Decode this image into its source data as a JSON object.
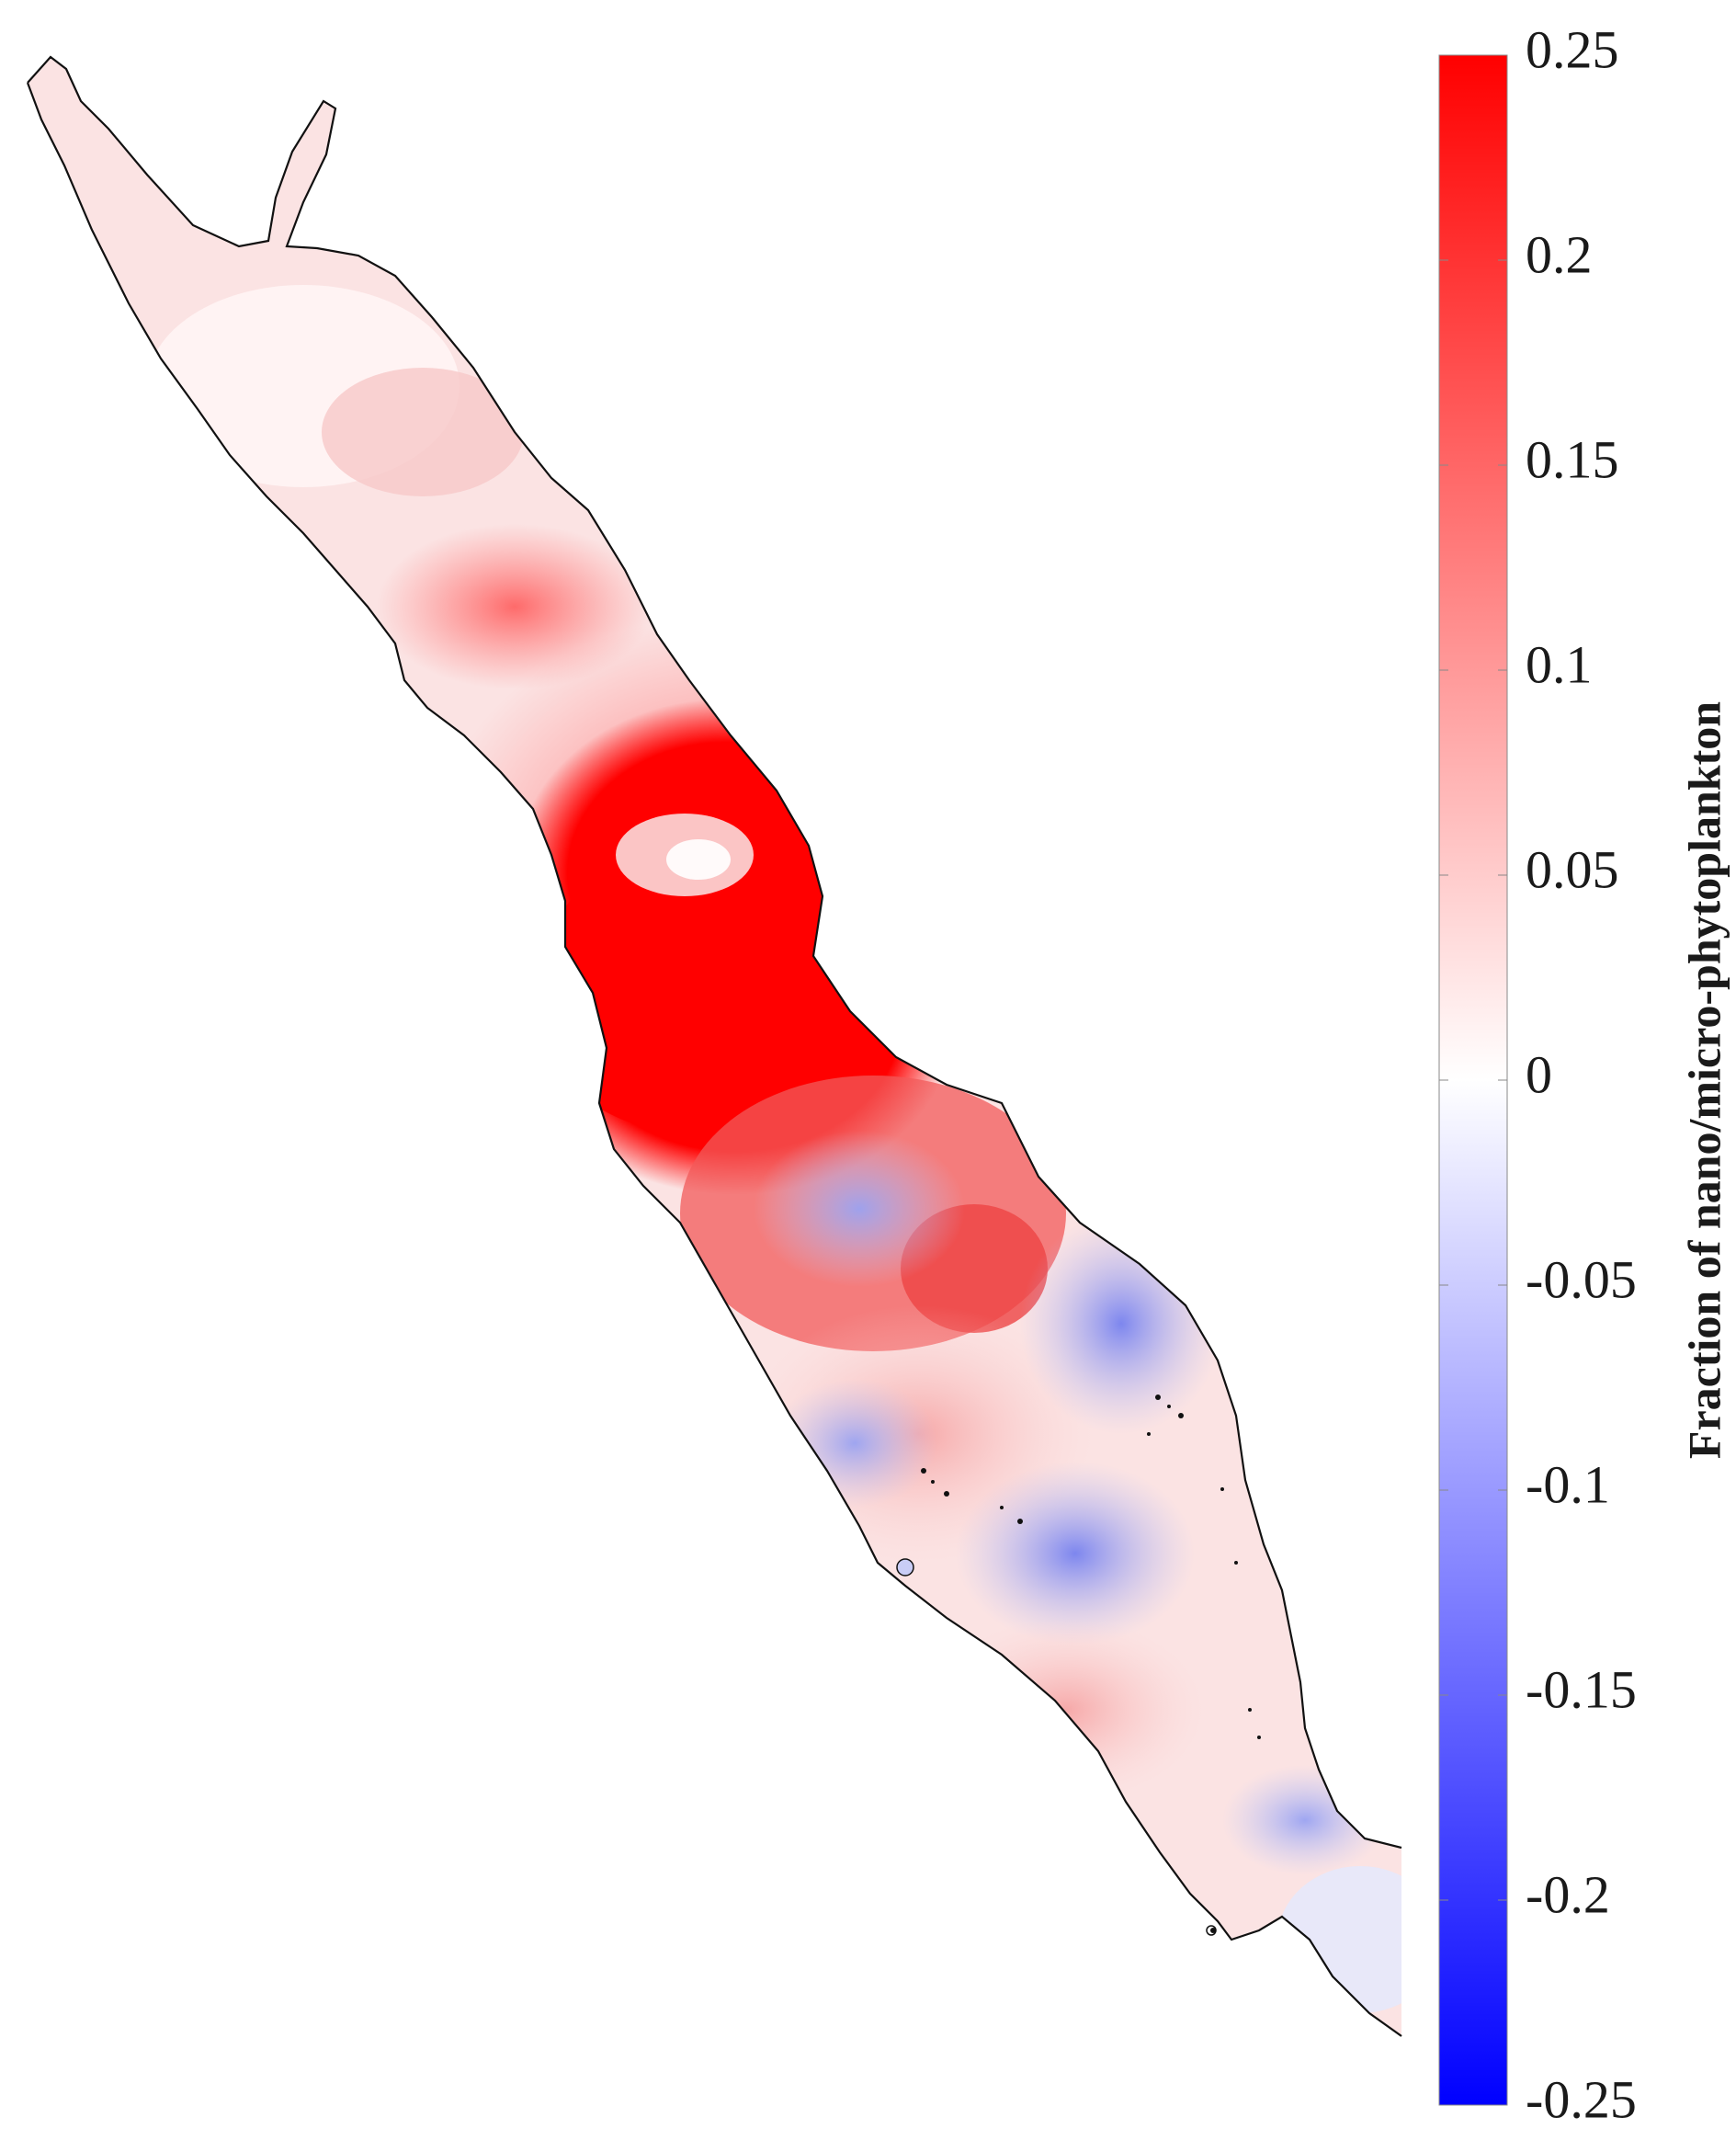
{
  "chart_data": {
    "type": "heatmap",
    "colorbar": {
      "label": "Fraction of nano/micro-phytoplankton",
      "min": -0.25,
      "max": 0.25,
      "ticks": [
        "0.25",
        "0.2",
        "0.15",
        "0.1",
        "0.05",
        "0",
        "-0.05",
        "-0.1",
        "-0.15",
        "-0.2",
        "-0.25"
      ],
      "tick_values": [
        0.25,
        0.2,
        0.15,
        0.1,
        0.05,
        0,
        -0.05,
        -0.1,
        -0.15,
        -0.2,
        -0.25
      ],
      "colormap": {
        "low": "#0000ff",
        "mid": "#ffffff",
        "high": "#ff0000"
      },
      "orientation": "vertical",
      "placement": "right"
    },
    "map": {
      "region_outline_color": "#111111",
      "background": "#ffffff"
    }
  }
}
